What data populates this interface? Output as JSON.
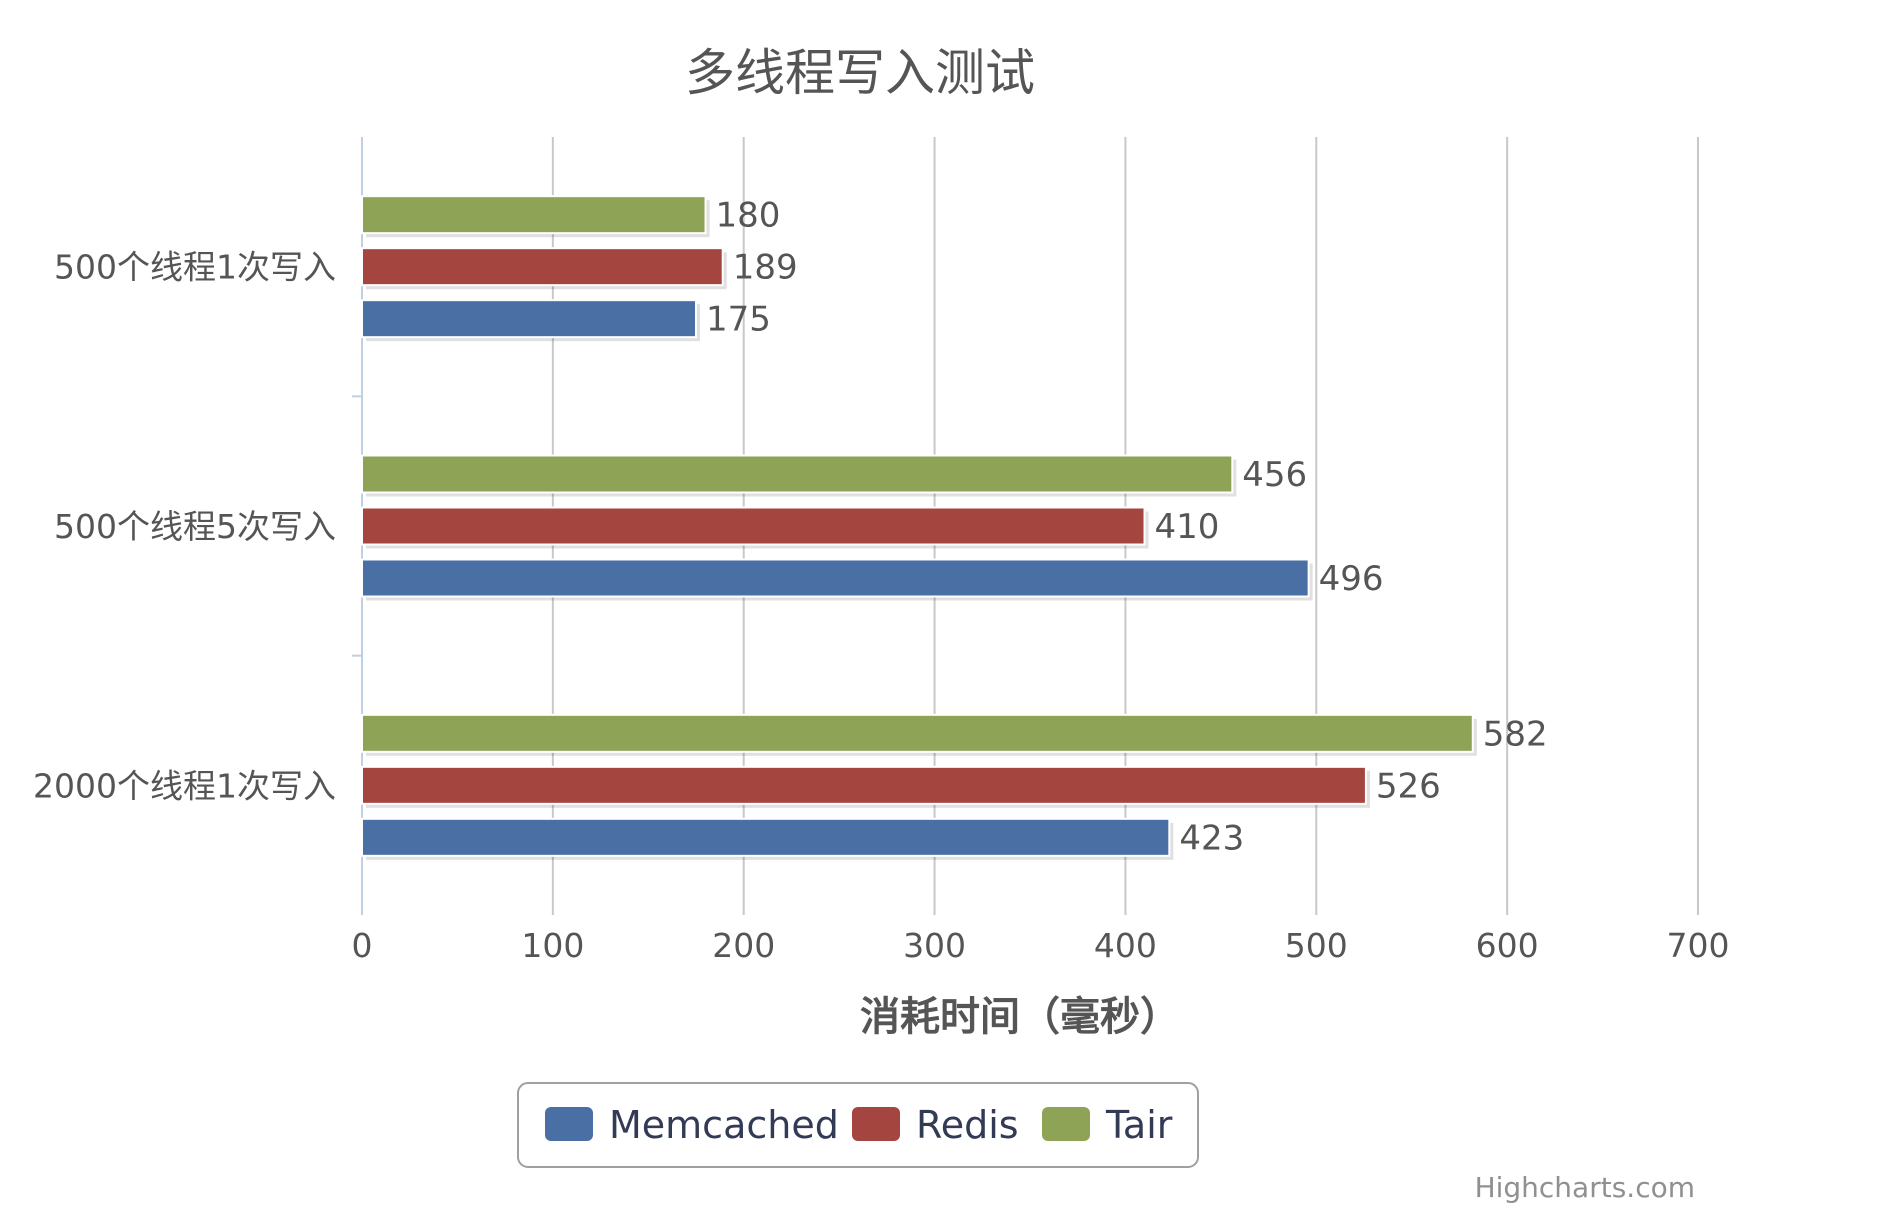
{
  "chart_data": {
    "type": "bar",
    "orientation": "horizontal",
    "title": "多线程写入测试",
    "categories": [
      "500个线程1次写入",
      "500个线程5次写入",
      "2000个线程1次写入"
    ],
    "series": [
      {
        "name": "Memcached",
        "color": "#4a6fa5",
        "values": [
          175,
          496,
          423
        ]
      },
      {
        "name": "Redis",
        "color": "#a4453f",
        "values": [
          189,
          410,
          526
        ]
      },
      {
        "name": "Tair",
        "color": "#8fa356",
        "values": [
          180,
          456,
          582
        ]
      }
    ],
    "xlabel": "消耗时间（毫秒）",
    "xlim": [
      0,
      700
    ],
    "xticks": [
      0,
      100,
      200,
      300,
      400,
      500,
      600,
      700
    ],
    "grid": true,
    "data_labels": true,
    "legend_position": "bottom-center",
    "credit": "Highcharts.com"
  }
}
